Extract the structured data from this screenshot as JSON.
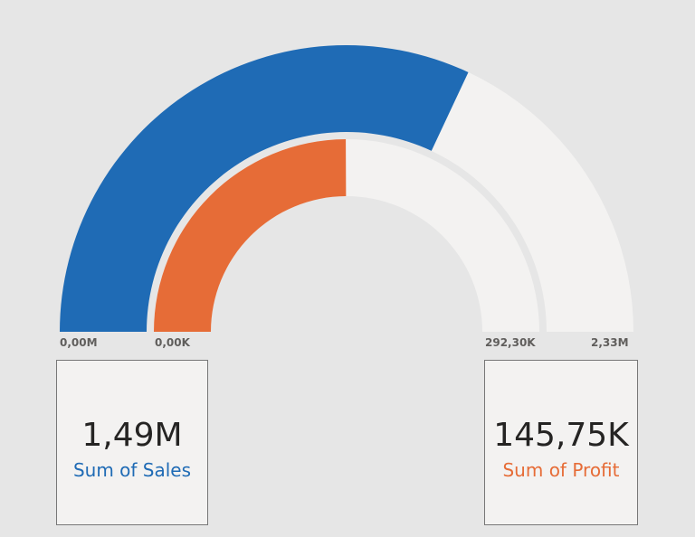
{
  "chart_data": [
    {
      "type": "gauge",
      "series_label": "Sum of Sales",
      "value": 1490000,
      "value_label": "1,49M",
      "min": 0,
      "max": 2330000,
      "min_label": "0,00M",
      "max_label": "2,33M",
      "color": "#1f6bb5"
    },
    {
      "type": "gauge",
      "series_label": "Sum of Profit",
      "value": 145750,
      "value_label": "145,75K",
      "min": 0,
      "max": 292300,
      "min_label": "0,00K",
      "max_label": "292,30K",
      "color": "#e66c37"
    }
  ],
  "track_color": "#f3f2f1"
}
